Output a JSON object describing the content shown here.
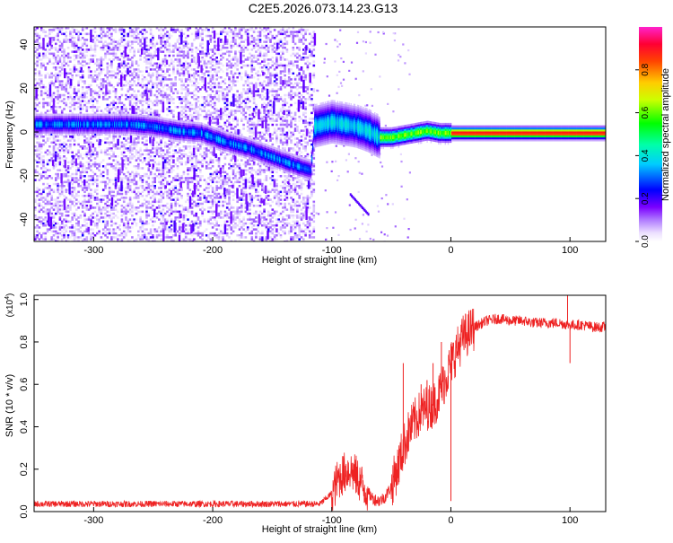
{
  "title": "C2E5.2026.073.14.23.G13",
  "chart_data": [
    {
      "type": "heatmap",
      "xlabel": "Height of straight line (km)",
      "ylabel": "Frequency (Hz)",
      "xlim": [
        -350,
        130
      ],
      "ylim": [
        -50,
        48
      ],
      "xticks": [
        -300,
        -200,
        -100,
        0,
        100
      ],
      "yticks": [
        -40,
        -20,
        0,
        20,
        40
      ],
      "colorbar": {
        "label": "Normalized spectral amplitude",
        "range": [
          0,
          1
        ],
        "ticks": [
          "0.0",
          "0.2",
          "0.4",
          "0.6",
          "0.8"
        ],
        "tick_values": [
          0,
          0.2,
          0.4,
          0.6,
          0.8
        ],
        "colormap": [
          "#ffffff",
          "#7b00ff",
          "#0000ff",
          "#00ffff",
          "#00ff00",
          "#ffff00",
          "#ff8800",
          "#ff0000",
          "#ff00ff"
        ]
      },
      "ridge": {
        "x": [
          -350,
          -320,
          -300,
          -270,
          -250,
          -230,
          -210,
          -190,
          -170,
          -150,
          -130,
          -118,
          -115,
          -100,
          -90,
          -80,
          -70,
          -60,
          -50,
          -40,
          -30,
          -20,
          -10,
          0,
          20,
          40,
          60,
          80,
          100,
          130
        ],
        "freq": [
          4,
          4,
          4,
          4,
          3,
          1,
          0,
          -4,
          -7,
          -11,
          -15,
          -17,
          3,
          5,
          4,
          3,
          1,
          -2,
          -2,
          -1,
          0,
          1,
          0,
          0,
          0,
          0,
          0,
          0,
          0,
          0
        ]
      },
      "grid": false,
      "legend": "none"
    },
    {
      "type": "line",
      "xlabel": "Height of straight line (km)",
      "ylabel": "SNR (10 * v/v)",
      "yscale_label": "(x10",
      "yscale_exp": "4",
      "yscale_close": ")",
      "xlim": [
        -350,
        130
      ],
      "ylim": [
        0,
        1.02
      ],
      "xticks": [
        -300,
        -200,
        -100,
        0,
        100
      ],
      "yticks": [
        "0.0",
        "0.2",
        "0.4",
        "0.6",
        "0.8",
        "1.0"
      ],
      "ytick_values": [
        0,
        0.2,
        0.4,
        0.6,
        0.8,
        1.0
      ],
      "color": "#ee2222",
      "x": [
        -350,
        -300,
        -250,
        -200,
        -150,
        -110,
        -100,
        -95,
        -90,
        -85,
        -80,
        -75,
        -70,
        -65,
        -60,
        -55,
        -50,
        -45,
        -40,
        -35,
        -30,
        -25,
        -20,
        -15,
        -10,
        -5,
        0,
        5,
        10,
        20,
        30,
        40,
        50,
        60,
        70,
        80,
        90,
        100,
        110,
        120,
        130
      ],
      "values": [
        0.03,
        0.03,
        0.03,
        0.03,
        0.03,
        0.03,
        0.08,
        0.15,
        0.18,
        0.2,
        0.17,
        0.13,
        0.09,
        0.06,
        0.05,
        0.07,
        0.12,
        0.2,
        0.3,
        0.38,
        0.43,
        0.47,
        0.49,
        0.5,
        0.55,
        0.62,
        0.7,
        0.76,
        0.82,
        0.87,
        0.9,
        0.91,
        0.9,
        0.9,
        0.89,
        0.89,
        0.89,
        0.88,
        0.88,
        0.87,
        0.87
      ],
      "spikes": [
        {
          "x": -40,
          "y": 0.7
        },
        {
          "x": -25,
          "y": 0.6
        },
        {
          "x": -20,
          "y": 0.62
        },
        {
          "x": -15,
          "y": 0.7
        },
        {
          "x": -8,
          "y": 0.8
        },
        {
          "x": 0,
          "y": 0.05
        },
        {
          "x": 98,
          "y": 1.02
        },
        {
          "x": 100,
          "y": 0.7
        }
      ],
      "grid": false,
      "legend": "none"
    }
  ]
}
